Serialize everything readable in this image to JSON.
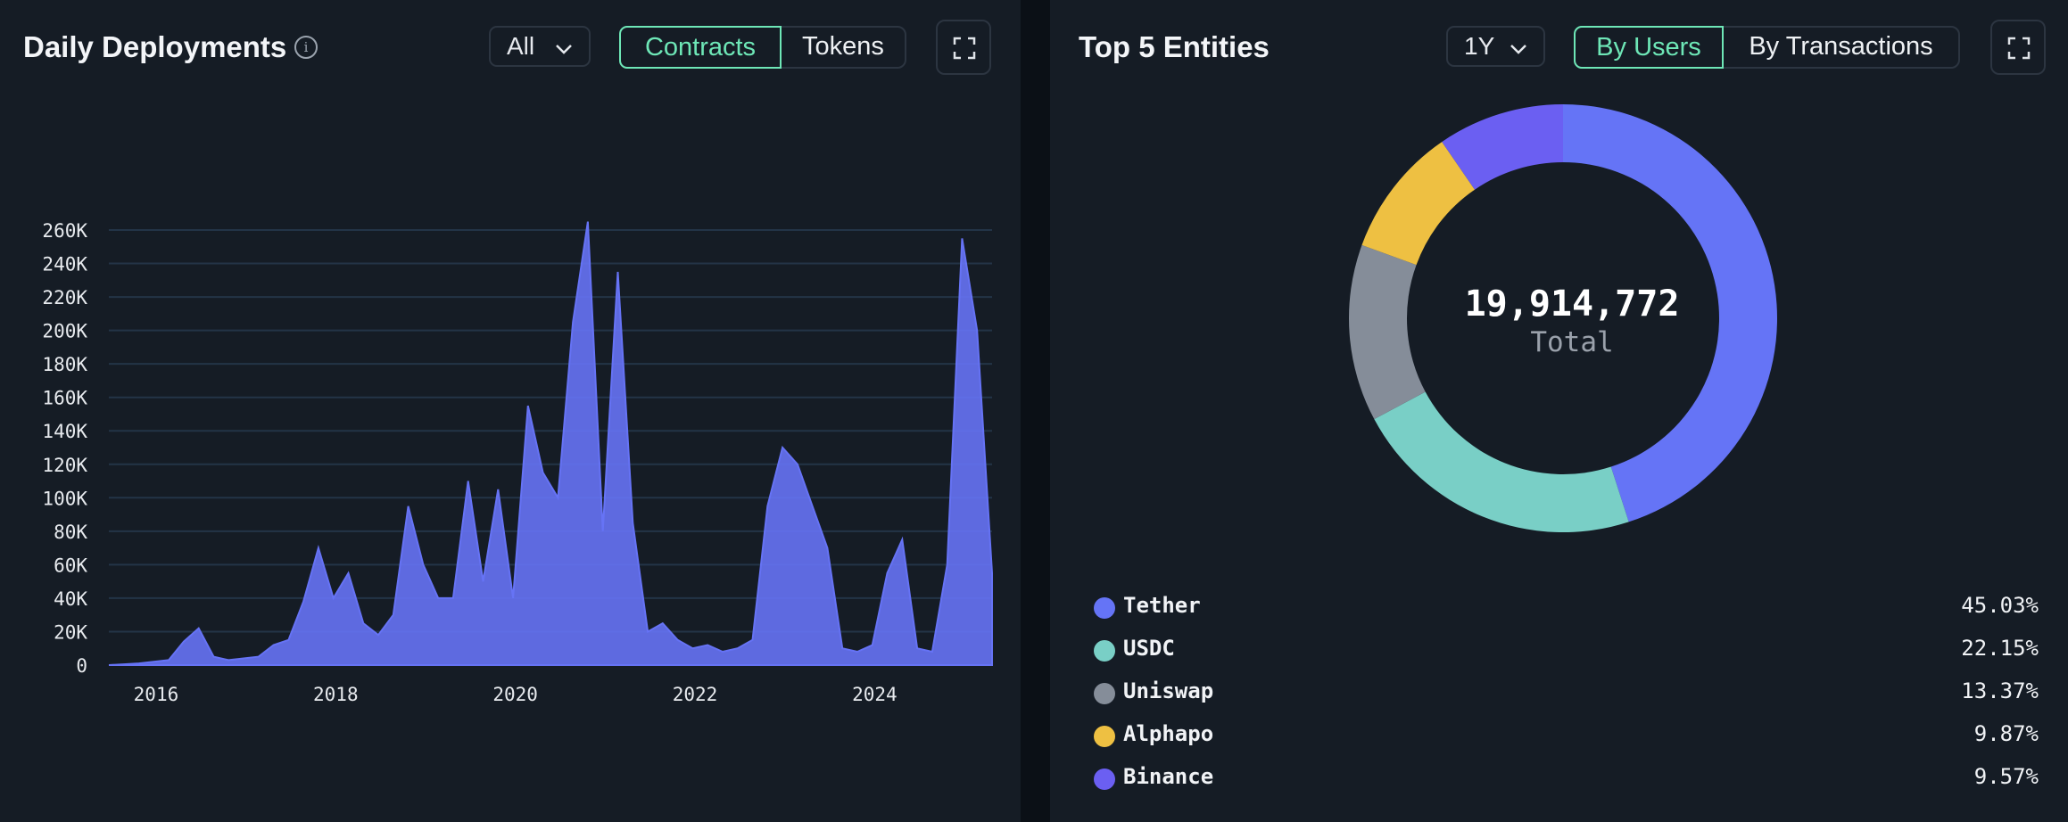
{
  "deployments": {
    "title": "Daily Deployments",
    "info_icon": "info-icon",
    "range_select": {
      "selected": "All"
    },
    "toggle": {
      "options": [
        "Contracts",
        "Tokens"
      ],
      "active": "Contracts"
    },
    "expand_icon": "expand-icon",
    "colors": {
      "series": "#6673f5",
      "grid": "#233447",
      "active": "#6ee7b7"
    }
  },
  "entities": {
    "title": "Top 5 Entities",
    "range_select": {
      "selected": "1Y"
    },
    "toggle": {
      "options": [
        "By Users",
        "By Transactions"
      ],
      "active": "By Users"
    },
    "expand_icon": "expand-icon",
    "total_value": "19,914,772",
    "total_label": "Total",
    "legend": [
      {
        "name": "Tether",
        "percent": "45.03%",
        "color": "#6574f6"
      },
      {
        "name": "USDC",
        "percent": "22.15%",
        "color": "#79cfc6"
      },
      {
        "name": "Uniswap",
        "percent": "13.37%",
        "color": "#858d99"
      },
      {
        "name": "Alphapo",
        "percent": "9.87%",
        "color": "#eec042"
      },
      {
        "name": "Binance",
        "percent": "9.57%",
        "color": "#6b5ff2"
      }
    ]
  },
  "chart_data": [
    {
      "type": "area",
      "title": "Daily Deployments",
      "xlabel": "",
      "ylabel": "",
      "x_ticks": [
        "2016",
        "2018",
        "2020",
        "2022",
        "2024"
      ],
      "y_ticks": [
        "0",
        "20K",
        "40K",
        "60K",
        "80K",
        "100K",
        "120K",
        "140K",
        "160K",
        "180K",
        "200K",
        "220K",
        "240K",
        "260K"
      ],
      "ylim": [
        0,
        260000
      ],
      "xlim": [
        "2015-08",
        "2025-06"
      ],
      "grid": true,
      "series": [
        {
          "x": [
            "2015-08",
            "2015-10",
            "2015-12",
            "2016-02",
            "2016-04",
            "2016-06",
            "2016-08",
            "2016-10",
            "2016-12",
            "2017-02",
            "2017-04",
            "2017-06",
            "2017-08",
            "2017-10",
            "2017-12",
            "2018-02",
            "2018-04",
            "2018-06",
            "2018-08",
            "2018-10",
            "2018-12",
            "2019-02",
            "2019-04",
            "2019-06",
            "2019-08",
            "2019-10",
            "2019-12",
            "2020-02",
            "2020-04",
            "2020-06",
            "2020-08",
            "2020-10",
            "2020-12",
            "2021-02",
            "2021-04",
            "2021-06",
            "2021-08",
            "2021-10",
            "2021-12",
            "2022-02",
            "2022-04",
            "2022-06",
            "2022-08",
            "2022-10",
            "2022-12",
            "2023-02",
            "2023-04",
            "2023-06",
            "2023-08",
            "2023-10",
            "2023-12",
            "2024-02",
            "2024-04",
            "2024-06",
            "2024-08",
            "2024-10",
            "2024-12",
            "2025-02",
            "2025-04",
            "2025-06"
          ],
          "values": [
            0,
            500,
            1000,
            2000,
            3000,
            14000,
            22000,
            5000,
            3000,
            4000,
            5000,
            12000,
            15000,
            38000,
            70000,
            40000,
            55000,
            25000,
            18000,
            30000,
            95000,
            60000,
            40000,
            40000,
            110000,
            50000,
            105000,
            40000,
            155000,
            115000,
            100000,
            205000,
            265000,
            80000,
            235000,
            85000,
            20000,
            25000,
            15000,
            10000,
            12000,
            8000,
            10000,
            15000,
            95000,
            130000,
            120000,
            95000,
            70000,
            10000,
            8000,
            12000,
            55000,
            75000,
            10000,
            8000,
            60000,
            255000,
            200000,
            55000
          ]
        }
      ]
    },
    {
      "type": "pie",
      "title": "Top 5 Entities",
      "categories": [
        "Tether",
        "USDC",
        "Uniswap",
        "Alphapo",
        "Binance"
      ],
      "values": [
        45.03,
        22.15,
        13.37,
        9.87,
        9.57
      ],
      "total": 19914772,
      "legend_position": "bottom"
    }
  ]
}
